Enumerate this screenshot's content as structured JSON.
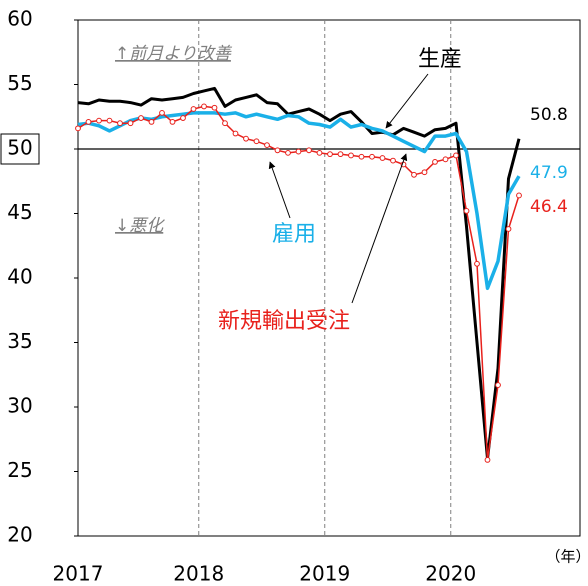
{
  "chart_data": {
    "type": "line",
    "x_label": "（年）",
    "categories": [
      "2017",
      null,
      null,
      null,
      null,
      null,
      null,
      null,
      null,
      null,
      null,
      null,
      "2018",
      null,
      null,
      null,
      null,
      null,
      null,
      null,
      null,
      null,
      null,
      null,
      "2019",
      null,
      null,
      null,
      null,
      null,
      null,
      null,
      null,
      null,
      null,
      null,
      "2020",
      null,
      null,
      null,
      null,
      null,
      null
    ],
    "ylim": [
      20,
      60
    ],
    "yticks": [
      20,
      25,
      30,
      35,
      40,
      45,
      50,
      55,
      60
    ],
    "reference_line": 50,
    "series": [
      {
        "name": "生産",
        "color": "#000000",
        "markers": false,
        "values": [
          53.6,
          53.5,
          53.8,
          53.7,
          53.7,
          53.6,
          53.4,
          53.9,
          53.8,
          53.9,
          54.0,
          54.3,
          54.5,
          54.7,
          53.3,
          53.8,
          54.0,
          54.2,
          53.6,
          53.5,
          52.7,
          52.9,
          53.1,
          52.7,
          52.2,
          52.7,
          52.9,
          52.1,
          51.2,
          51.3,
          51.1,
          51.6,
          51.3,
          51.0,
          51.5,
          51.6,
          52.0,
          44.0,
          35.0,
          26.0,
          33.0,
          47.7,
          50.8
        ]
      },
      {
        "name": "雇用",
        "color": "#1ab0e8",
        "markers": false,
        "values": [
          51.9,
          52.0,
          51.8,
          51.4,
          51.8,
          52.2,
          52.4,
          52.3,
          52.5,
          52.6,
          52.7,
          52.8,
          52.8,
          52.8,
          52.7,
          52.8,
          52.5,
          52.7,
          52.5,
          52.3,
          52.6,
          52.5,
          52.0,
          51.9,
          51.7,
          52.3,
          51.7,
          51.9,
          51.6,
          51.4,
          51.0,
          50.6,
          50.2,
          49.8,
          51.0,
          51.0,
          51.2,
          49.8,
          45.0,
          39.2,
          41.3,
          46.5,
          47.9
        ]
      },
      {
        "name": "新規輸出受注",
        "color": "#e8211c",
        "markers": true,
        "values": [
          51.6,
          52.1,
          52.2,
          52.2,
          52.0,
          52.0,
          52.4,
          52.1,
          52.8,
          52.1,
          52.4,
          53.1,
          53.3,
          53.2,
          52.0,
          51.2,
          50.8,
          50.6,
          50.3,
          49.9,
          49.7,
          49.8,
          49.9,
          49.7,
          49.6,
          49.6,
          49.5,
          49.4,
          49.4,
          49.3,
          49.1,
          48.8,
          48.0,
          48.2,
          49.0,
          49.2,
          49.5,
          45.2,
          41.1,
          25.9,
          31.7,
          43.8,
          46.4
        ]
      }
    ],
    "annotations": [
      "↑前月より改善",
      "↓悪化"
    ]
  }
}
